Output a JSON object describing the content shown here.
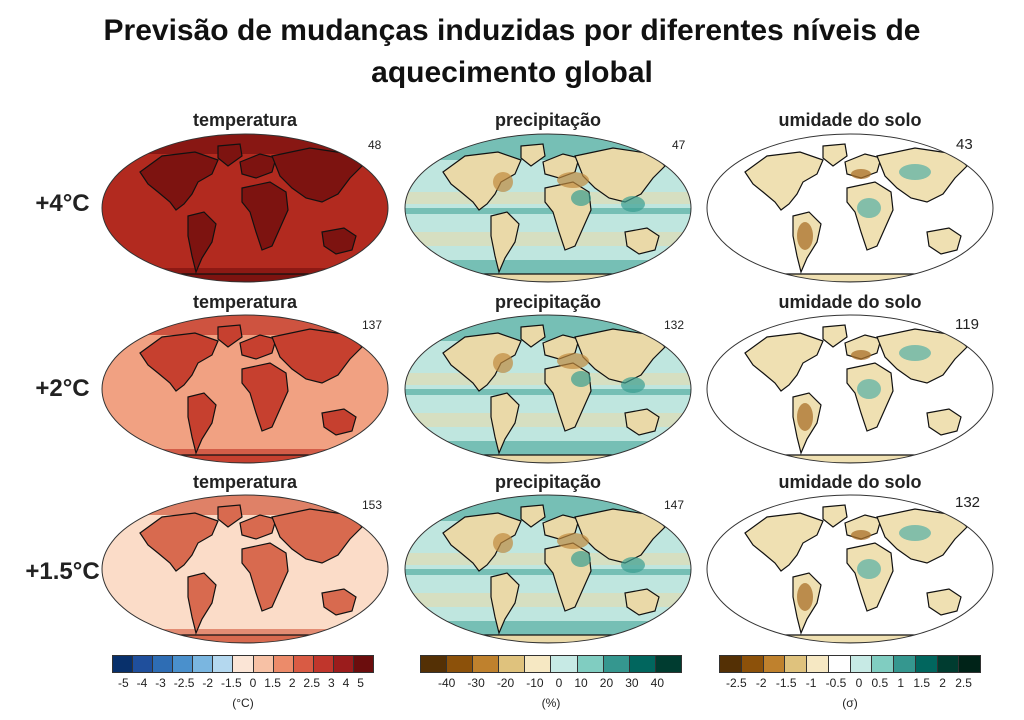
{
  "title_line1": "Previsão de mudanças induzidas por diferentes níveis de",
  "title_line2": "aquecimento global",
  "rows": [
    {
      "label": "+4°C",
      "panels": [
        {
          "title": "temperatura",
          "count": "48"
        },
        {
          "title": "precipitação",
          "count": "47"
        },
        {
          "title": "umidade do solo",
          "count": "43"
        }
      ]
    },
    {
      "label": "+2°C",
      "panels": [
        {
          "title": "temperatura",
          "count": "137"
        },
        {
          "title": "precipitação",
          "count": "132"
        },
        {
          "title": "umidade do solo",
          "count": "119"
        }
      ]
    },
    {
      "label": "+1.5°C",
      "panels": [
        {
          "title": "temperatura",
          "count": "153"
        },
        {
          "title": "precipitação",
          "count": "147"
        },
        {
          "title": "umidade do solo",
          "count": "132"
        }
      ]
    }
  ],
  "colorbars": {
    "temperature": {
      "ticks": [
        "-5",
        "-4",
        "-3",
        "-2.5",
        "-2",
        "-1.5",
        "0",
        "1.5",
        "2",
        "2.5",
        "3",
        "4",
        "5"
      ],
      "unit": "(°C)",
      "colors": [
        "#08306b",
        "#1f4f9c",
        "#2e6db4",
        "#4a90cc",
        "#7ab6e0",
        "#b4d8ef",
        "#fbe5d6",
        "#f7c1a5",
        "#ec8b6a",
        "#d95b44",
        "#c0362c",
        "#9b1c1c",
        "#6b0d0d"
      ]
    },
    "precipitation": {
      "ticks": [
        "-40",
        "-30",
        "-20",
        "-10",
        "0",
        "10",
        "20",
        "30",
        "40"
      ],
      "unit": "(%)",
      "colors": [
        "#543005",
        "#8c510a",
        "#bf812d",
        "#dfc27d",
        "#f6e8c3",
        "#c7eae5",
        "#80cdc1",
        "#35978f",
        "#01665e",
        "#003c30"
      ]
    },
    "soil": {
      "ticks": [
        "-2.5",
        "-2",
        "-1.5",
        "-1",
        "-0.5",
        "0",
        "0.5",
        "1",
        "1.5",
        "2",
        "2.5"
      ],
      "unit": "(σ)",
      "colors": [
        "#543005",
        "#8c510a",
        "#bf812d",
        "#dfc27d",
        "#f6e8c3",
        "#ffffff",
        "#c7eae5",
        "#80cdc1",
        "#35978f",
        "#01665e",
        "#003c30",
        "#002318"
      ]
    }
  },
  "map_colors": {
    "temp_4": "#b22a1f",
    "temp_4_land": "#7d1310",
    "temp_2": "#f1a182",
    "temp_2_land": "#c6402f",
    "temp_15": "#fbdcc8",
    "temp_15_land": "#d86a4f",
    "precip_ocean": "#bfe6df",
    "precip_land": "#ead9a8",
    "precip_wet": "#3a9e92",
    "precip_dry": "#c08a3f",
    "soil_bg": "#ffffff",
    "soil_land": "#efe0b2",
    "soil_dry": "#a9702a",
    "soil_wet": "#5fb3a6"
  }
}
